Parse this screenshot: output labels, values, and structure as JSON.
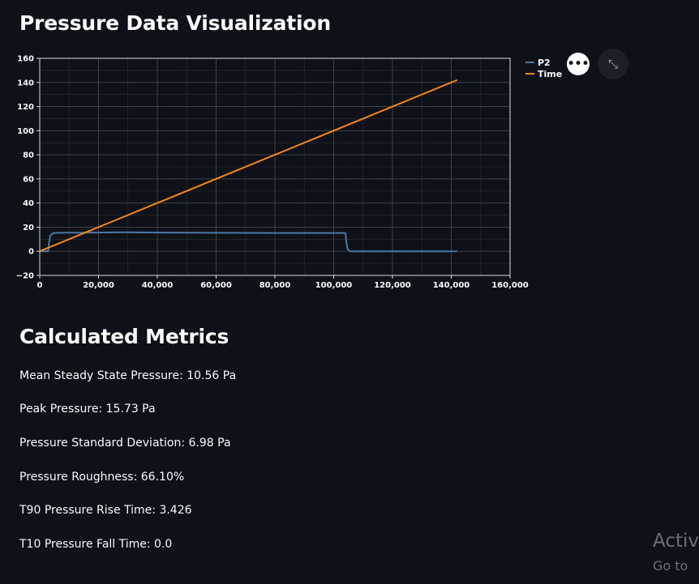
{
  "page": {
    "title": "Pressure Data Visualization",
    "metrics_heading": "Calculated Metrics"
  },
  "metrics": [
    {
      "label": "Mean Steady State Pressure: 10.56 Pa"
    },
    {
      "label": "Peak Pressure: 15.73 Pa"
    },
    {
      "label": "Pressure Standard Deviation: 6.98 Pa"
    },
    {
      "label": "Pressure Roughness: 66.10%"
    },
    {
      "label": "T90 Pressure Rise Time: 3.426"
    },
    {
      "label": "T10 Pressure Fall Time: 0.0"
    }
  ],
  "toolbar": {
    "menu_icon": "more-horizontal-icon",
    "menu_glyph": "•••",
    "expand_icon": "fullscreen-icon",
    "expand_glyph": "⤡"
  },
  "watermark": {
    "line1": "Activ",
    "line2": "Go to"
  },
  "colors": {
    "background": "#0e1117",
    "p2": "#4c78a8",
    "time": "#f58518",
    "grid": "#3d4049"
  },
  "chart_data": {
    "type": "line",
    "title": "",
    "xlabel": "",
    "ylabel": "",
    "xlim": [
      0,
      160000
    ],
    "ylim": [
      -20,
      160
    ],
    "x_ticks": [
      0,
      20000,
      40000,
      60000,
      80000,
      100000,
      120000,
      140000,
      160000
    ],
    "x_tick_labels": [
      "0",
      "20,000",
      "40,000",
      "60,000",
      "80,000",
      "100,000",
      "120,000",
      "140,000",
      "160,000"
    ],
    "y_ticks": [
      -20,
      0,
      20,
      40,
      60,
      80,
      100,
      120,
      140,
      160
    ],
    "y_tick_labels": [
      "−20",
      "0",
      "20",
      "40",
      "60",
      "80",
      "100",
      "120",
      "140",
      "160"
    ],
    "grid": true,
    "legend_position": "top-right",
    "series": [
      {
        "name": "P2",
        "color": "#4c78a8",
        "x": [
          0,
          2900,
          3100,
          3600,
          4500,
          6000,
          20000,
          30000,
          40000,
          60000,
          80000,
          100000,
          104000,
          104300,
          104700,
          105500,
          120000,
          142000
        ],
        "y": [
          0,
          0,
          6,
          13,
          15,
          15.3,
          15.5,
          15.7,
          15.5,
          15.3,
          15.2,
          15.2,
          15.2,
          8,
          2,
          0,
          0,
          0
        ]
      },
      {
        "name": "Time",
        "color": "#f58518",
        "x": [
          0,
          142000
        ],
        "y": [
          0,
          142
        ]
      }
    ]
  }
}
